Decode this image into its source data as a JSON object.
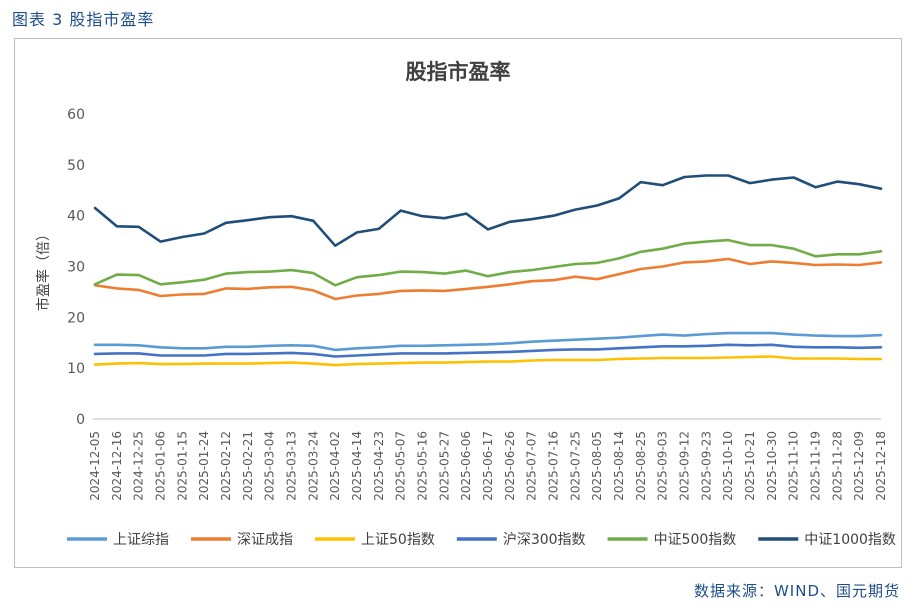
{
  "caption": "图表 3 股指市盈率",
  "source": "数据来源：WIND、国元期货",
  "chart_data": {
    "type": "line",
    "title": "股指市盈率",
    "xlabel": "",
    "ylabel": "市盈率（倍）",
    "ylim": [
      0,
      60
    ],
    "yticks": [
      "0",
      "10",
      "20",
      "30",
      "40",
      "50",
      "60"
    ],
    "grid": false,
    "legend_position": "bottom",
    "categories": [
      "2024-12-05",
      "2024-12-16",
      "2024-12-25",
      "2025-01-06",
      "2025-01-15",
      "2025-01-24",
      "2025-02-12",
      "2025-02-21",
      "2025-03-04",
      "2025-03-13",
      "2025-03-24",
      "2025-04-02",
      "2025-04-14",
      "2025-04-23",
      "2025-05-07",
      "2025-05-16",
      "2025-05-27",
      "2025-06-06",
      "2025-06-17",
      "2025-06-26",
      "2025-07-07",
      "2025-07-16",
      "2025-07-25",
      "2025-08-05",
      "2025-08-14",
      "2025-08-25",
      "2025-09-03",
      "2025-09-12",
      "2025-09-23",
      "2025-10-10",
      "2025-10-21",
      "2025-10-30",
      "2025-11-10",
      "2025-11-19",
      "2025-11-28",
      "2025-12-09",
      "2025-12-18"
    ],
    "series": [
      {
        "name": "上证综指",
        "color": "#5b9bd5",
        "values": [
          14.6,
          14.6,
          14.5,
          14.1,
          13.9,
          13.9,
          14.2,
          14.2,
          14.4,
          14.5,
          14.4,
          13.6,
          13.9,
          14.1,
          14.4,
          14.4,
          14.5,
          14.6,
          14.7,
          14.9,
          15.2,
          15.4,
          15.6,
          15.8,
          16.0,
          16.3,
          16.6,
          16.4,
          16.7,
          16.9,
          16.9,
          16.9,
          16.6,
          16.4,
          16.3,
          16.3,
          16.5
        ]
      },
      {
        "name": "深证成指",
        "color": "#ed7d31",
        "values": [
          26.3,
          25.7,
          25.4,
          24.2,
          24.5,
          24.6,
          25.7,
          25.6,
          25.9,
          26.0,
          25.3,
          23.6,
          24.3,
          24.6,
          25.2,
          25.3,
          25.2,
          25.6,
          26.0,
          26.5,
          27.1,
          27.3,
          28.0,
          27.5,
          28.5,
          29.5,
          30.0,
          30.8,
          31.0,
          31.5,
          30.5,
          31.0,
          30.7,
          30.3,
          30.4,
          30.3,
          30.8
        ]
      },
      {
        "name": "上证50指数",
        "color": "#ffc000",
        "values": [
          10.7,
          10.9,
          11.0,
          10.8,
          10.8,
          10.9,
          10.9,
          10.9,
          11.0,
          11.1,
          10.9,
          10.6,
          10.8,
          10.9,
          11.0,
          11.1,
          11.1,
          11.2,
          11.3,
          11.3,
          11.5,
          11.6,
          11.6,
          11.6,
          11.8,
          11.9,
          12.0,
          12.0,
          12.0,
          12.1,
          12.2,
          12.3,
          11.9,
          11.9,
          11.9,
          11.8,
          11.8
        ]
      },
      {
        "name": "沪深300指数",
        "color": "#4472c4",
        "values": [
          12.8,
          12.9,
          12.9,
          12.5,
          12.5,
          12.5,
          12.8,
          12.8,
          12.9,
          13.0,
          12.8,
          12.3,
          12.5,
          12.7,
          12.9,
          12.9,
          12.9,
          13.0,
          13.1,
          13.2,
          13.4,
          13.6,
          13.7,
          13.7,
          13.9,
          14.1,
          14.3,
          14.3,
          14.4,
          14.6,
          14.5,
          14.6,
          14.2,
          14.1,
          14.1,
          14.0,
          14.1
        ]
      },
      {
        "name": "中证500指数",
        "color": "#70ad47",
        "values": [
          26.5,
          28.4,
          28.3,
          26.5,
          26.9,
          27.4,
          28.6,
          28.9,
          29.0,
          29.3,
          28.7,
          26.3,
          27.9,
          28.3,
          29.0,
          28.9,
          28.6,
          29.2,
          28.1,
          28.9,
          29.3,
          29.9,
          30.5,
          30.7,
          31.6,
          32.9,
          33.5,
          34.5,
          34.9,
          35.2,
          34.2,
          34.2,
          33.5,
          32.0,
          32.4,
          32.4,
          33.0
        ]
      },
      {
        "name": "中证1000指数",
        "color": "#1f4e79",
        "values": [
          41.5,
          37.9,
          37.8,
          34.9,
          35.8,
          36.5,
          38.6,
          39.1,
          39.7,
          39.9,
          39.0,
          34.1,
          36.7,
          37.4,
          41.0,
          39.9,
          39.5,
          40.4,
          37.3,
          38.8,
          39.3,
          40.0,
          41.2,
          42.0,
          43.4,
          46.6,
          46.0,
          47.6,
          47.9,
          47.9,
          46.4,
          47.1,
          47.5,
          45.6,
          46.7,
          46.2,
          45.3
        ]
      }
    ]
  }
}
